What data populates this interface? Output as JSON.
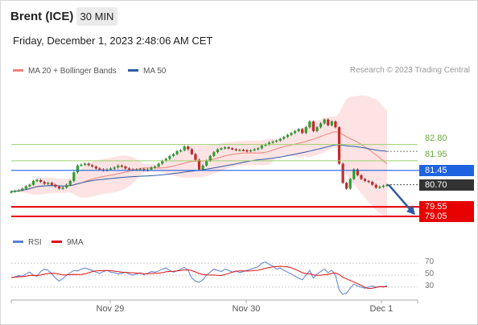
{
  "header": {
    "title": "Brent (ICE)",
    "timeframe": "30 MIN",
    "datetime": "Friday, December 1, 2023 2:48:06 AM CET"
  },
  "legend": {
    "ma_bb": {
      "label": "MA 20 + Bollinger Bands",
      "color": "#f0837a"
    },
    "ma50": {
      "label": "MA 50",
      "color": "#2f5aa8"
    },
    "copyright": "Research © 2023 Trading Central",
    "rsi": {
      "label": "RSI",
      "color": "#5b7fd6"
    },
    "rsi_ma": {
      "label": "9MA",
      "color": "#e01010"
    }
  },
  "colors": {
    "up": "#2ca02c",
    "down": "#c62828",
    "support": "#e60000",
    "resistance": "#9bd16b",
    "pivot": "#1e63e0",
    "last": "#333333",
    "band": "#fcd9d9"
  },
  "levels": [
    {
      "value": 82.8,
      "label": "82.80",
      "kind": "resistance"
    },
    {
      "value": 81.95,
      "label": "81.95",
      "kind": "resistance"
    },
    {
      "value": 81.45,
      "label": "81.45",
      "kind": "pivot"
    },
    {
      "value": 80.7,
      "label": "80.70",
      "kind": "last"
    },
    {
      "value": 79.55,
      "label": "79.55",
      "kind": "support"
    },
    {
      "value": 79.05,
      "label": "79.05",
      "kind": "support"
    }
  ],
  "rsi_ticks": [
    "70",
    "50",
    "30"
  ],
  "x_labels": [
    "Nov 29",
    "Nov 30",
    "Dec 1"
  ],
  "chart_data": {
    "type": "candlestick",
    "ylim": [
      78.8,
      85.3
    ],
    "rsi_ylim": [
      15,
      85
    ],
    "closes": [
      80.35,
      80.38,
      80.42,
      80.5,
      80.62,
      80.7,
      80.9,
      80.95,
      80.85,
      80.75,
      80.8,
      80.7,
      80.6,
      80.5,
      80.55,
      80.7,
      80.9,
      81.35,
      81.7,
      81.75,
      81.8,
      81.72,
      81.65,
      81.55,
      81.5,
      81.45,
      81.5,
      81.55,
      81.6,
      81.7,
      81.65,
      81.55,
      81.5,
      81.48,
      81.5,
      81.52,
      81.45,
      81.5,
      81.6,
      81.65,
      81.8,
      81.95,
      82.05,
      82.2,
      82.3,
      82.45,
      82.5,
      82.7,
      82.55,
      82.3,
      82.0,
      81.5,
      81.7,
      81.95,
      82.2,
      82.4,
      82.55,
      82.6,
      82.65,
      82.6,
      82.55,
      82.5,
      82.52,
      82.5,
      82.45,
      82.5,
      82.55,
      82.6,
      82.75,
      82.8,
      82.9,
      82.95,
      83.0,
      83.1,
      83.2,
      83.3,
      83.4,
      83.5,
      83.6,
      83.4,
      83.7,
      84.0,
      83.5,
      83.7,
      83.9,
      84.1,
      83.8,
      84.0,
      83.7,
      81.8,
      80.8,
      80.5,
      81.0,
      81.5,
      81.2,
      81.0,
      80.9,
      80.85,
      80.7,
      80.55,
      80.6,
      80.65,
      80.7
    ],
    "rsi": [
      46,
      47,
      49,
      48,
      52,
      55,
      50,
      48,
      56,
      60,
      58,
      52,
      45,
      40,
      44,
      50,
      54,
      58,
      57,
      60,
      62,
      60,
      58,
      55,
      53,
      56,
      58,
      55,
      54,
      52,
      53,
      55,
      52,
      50,
      52,
      54,
      51,
      53,
      56,
      55,
      57,
      60,
      62,
      58,
      55,
      57,
      60,
      63,
      58,
      45,
      40,
      38,
      42,
      50,
      55,
      60,
      58,
      56,
      60,
      58,
      55,
      57,
      54,
      56,
      58,
      60,
      62,
      64,
      70,
      72,
      68,
      65,
      60,
      62,
      58,
      55,
      52,
      48,
      45,
      42,
      50,
      58,
      45,
      52,
      56,
      60,
      54,
      58,
      50,
      25,
      18,
      20,
      28,
      35,
      32,
      30,
      28,
      30,
      32,
      30,
      31,
      30,
      32
    ]
  }
}
